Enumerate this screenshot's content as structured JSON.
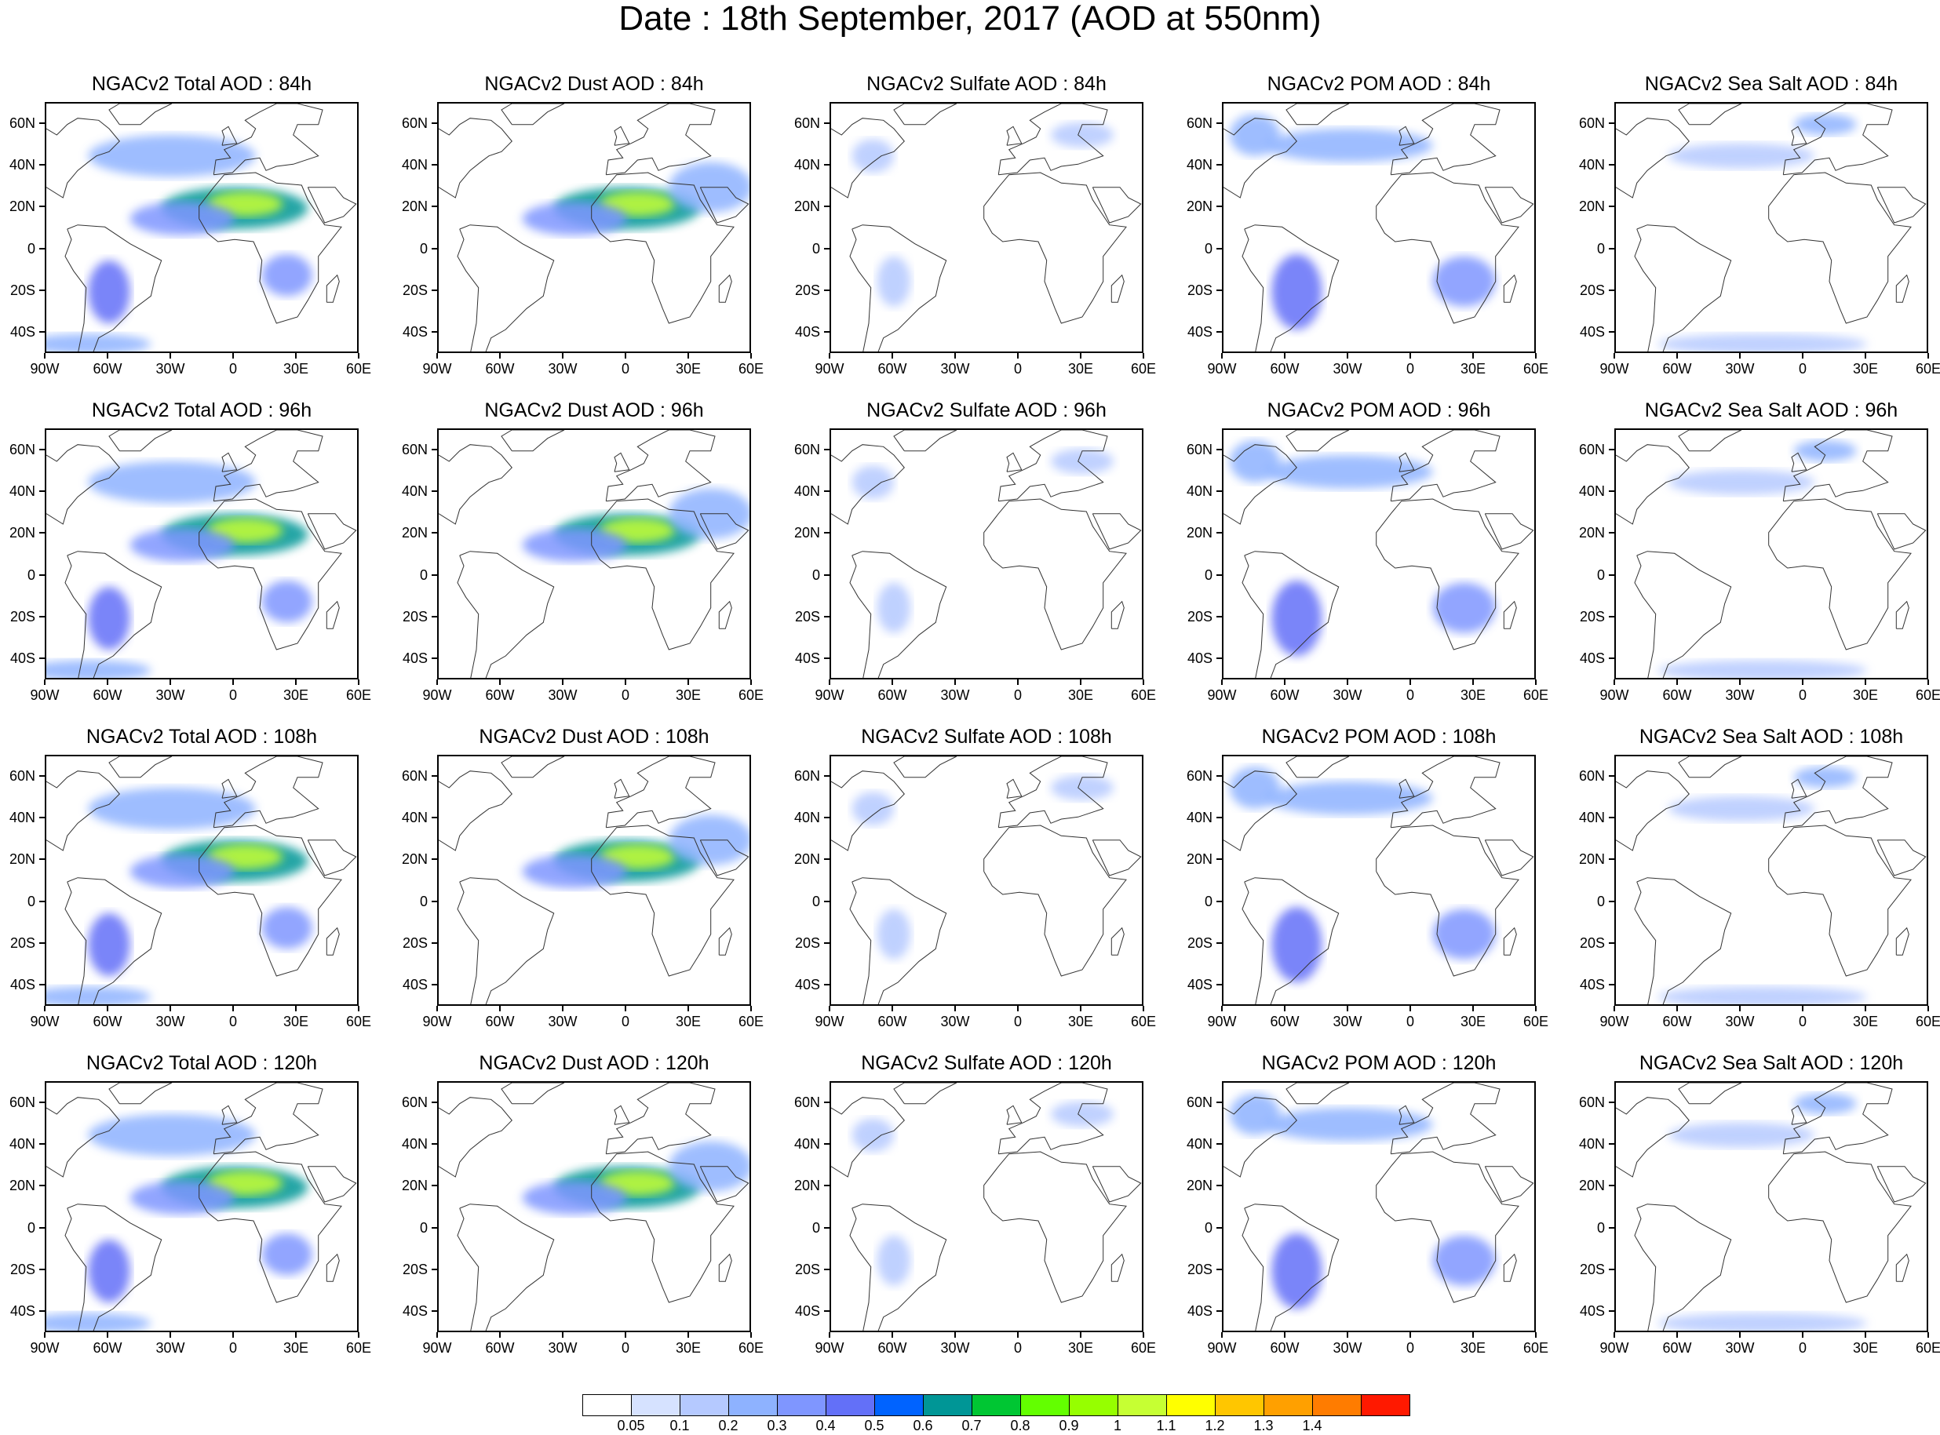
{
  "title": "Date : 18th September, 2017 (AOD at 550nm)",
  "columns": [
    "Total",
    "Dust",
    "Sulfate",
    "POM",
    "Sea Salt"
  ],
  "panels": [
    [
      {
        "title": "NGACv2 Total AOD : 84h",
        "species": "Total"
      },
      {
        "title": "NGACv2 Dust AOD : 84h",
        "species": "Dust"
      },
      {
        "title": "NGACv2 Sulfate AOD : 84h",
        "species": "Sulfate"
      },
      {
        "title": "NGACv2 POM AOD : 84h",
        "species": "POM"
      },
      {
        "title": "NGACv2 Sea Salt AOD : 84h",
        "species": "Sea Salt"
      }
    ],
    [
      {
        "title": "NGACv2 Total AOD : 96h",
        "species": "Total"
      },
      {
        "title": "NGACv2 Dust AOD : 96h",
        "species": "Dust"
      },
      {
        "title": "NGACv2 Sulfate AOD : 96h",
        "species": "Sulfate"
      },
      {
        "title": "NGACv2 POM AOD : 96h",
        "species": "POM"
      },
      {
        "title": "NGACv2 Sea Salt AOD : 96h",
        "species": "Sea Salt"
      }
    ],
    [
      {
        "title": "NGACv2 Total AOD : 108h",
        "species": "Total"
      },
      {
        "title": "NGACv2 Dust AOD : 108h",
        "species": "Dust"
      },
      {
        "title": "NGACv2 Sulfate AOD : 108h",
        "species": "Sulfate"
      },
      {
        "title": "NGACv2 POM AOD : 108h",
        "species": "POM"
      },
      {
        "title": "NGACv2 Sea Salt AOD : 108h",
        "species": "Sea Salt"
      }
    ],
    [
      {
        "title": "NGACv2 Total AOD : 120h",
        "species": "Total"
      },
      {
        "title": "NGACv2 Dust AOD : 120h",
        "species": "Dust"
      },
      {
        "title": "NGACv2 Sulfate AOD : 120h",
        "species": "Sulfate"
      },
      {
        "title": "NGACv2 POM AOD : 120h",
        "species": "POM"
      },
      {
        "title": "NGACv2 Sea Salt  AOD : 120h",
        "species": "Sea Salt"
      }
    ]
  ],
  "map_extent": {
    "lon": [
      -90,
      60
    ],
    "lat": [
      -50,
      70
    ]
  },
  "lon_ticks": [
    {
      "value": -90,
      "label": "90W"
    },
    {
      "value": -60,
      "label": "60W"
    },
    {
      "value": -30,
      "label": "30W"
    },
    {
      "value": 0,
      "label": "0"
    },
    {
      "value": 30,
      "label": "30E"
    },
    {
      "value": 60,
      "label": "60E"
    }
  ],
  "lat_ticks": [
    {
      "value": 60,
      "label": "60N"
    },
    {
      "value": 40,
      "label": "40N"
    },
    {
      "value": 20,
      "label": "20N"
    },
    {
      "value": 0,
      "label": "0"
    },
    {
      "value": -20,
      "label": "20S"
    },
    {
      "value": -40,
      "label": "40S"
    }
  ],
  "colorbar": {
    "labels": [
      "0.05",
      "0.1",
      "0.2",
      "0.3",
      "0.4",
      "0.5",
      "0.6",
      "0.7",
      "0.8",
      "0.9",
      "1",
      "1.1",
      "1.2",
      "1.3",
      "1.4"
    ],
    "colors": [
      "#ffffff",
      "#d6e2ff",
      "#b5c9ff",
      "#8eb2ff",
      "#7f96ff",
      "#6370f8",
      "#0063ff",
      "#009696",
      "#00c633",
      "#63ff00",
      "#96ff00",
      "#c6ff33",
      "#ffff00",
      "#ffc600",
      "#ffa000",
      "#ff7c00",
      "#ff1900"
    ]
  },
  "aerosol_features": {
    "Total": [
      {
        "lon": 0,
        "lat": 20,
        "rx": 35,
        "ry": 10,
        "level": 0.6
      },
      {
        "lon": 5,
        "lat": 22,
        "rx": 18,
        "ry": 6,
        "level": 1.0
      },
      {
        "lon": -25,
        "lat": 15,
        "rx": 25,
        "ry": 8,
        "level": 0.35
      },
      {
        "lon": -60,
        "lat": -20,
        "rx": 10,
        "ry": 15,
        "level": 0.45
      },
      {
        "lon": 25,
        "lat": -12,
        "rx": 12,
        "ry": 10,
        "level": 0.35
      },
      {
        "lon": -30,
        "lat": 45,
        "rx": 40,
        "ry": 10,
        "level": 0.25
      },
      {
        "lon": -70,
        "lat": -45,
        "rx": 30,
        "ry": 5,
        "level": 0.2
      }
    ],
    "Dust": [
      {
        "lon": 0,
        "lat": 20,
        "rx": 35,
        "ry": 10,
        "level": 0.6
      },
      {
        "lon": 5,
        "lat": 22,
        "rx": 18,
        "ry": 6,
        "level": 1.0
      },
      {
        "lon": -25,
        "lat": 15,
        "rx": 25,
        "ry": 8,
        "level": 0.3
      },
      {
        "lon": 40,
        "lat": 30,
        "rx": 20,
        "ry": 12,
        "level": 0.2
      }
    ],
    "Sulfate": [
      {
        "lon": -60,
        "lat": -15,
        "rx": 8,
        "ry": 12,
        "level": 0.1
      },
      {
        "lon": -70,
        "lat": 45,
        "rx": 10,
        "ry": 8,
        "level": 0.1
      },
      {
        "lon": 30,
        "lat": 55,
        "rx": 15,
        "ry": 6,
        "level": 0.1
      }
    ],
    "POM": [
      {
        "lon": -55,
        "lat": -20,
        "rx": 12,
        "ry": 18,
        "level": 0.4
      },
      {
        "lon": 25,
        "lat": -15,
        "rx": 15,
        "ry": 12,
        "level": 0.35
      },
      {
        "lon": -30,
        "lat": 50,
        "rx": 40,
        "ry": 8,
        "level": 0.2
      },
      {
        "lon": -75,
        "lat": 55,
        "rx": 12,
        "ry": 10,
        "level": 0.25
      }
    ],
    "Sea Salt": [
      {
        "lon": -30,
        "lat": 45,
        "rx": 35,
        "ry": 6,
        "level": 0.15
      },
      {
        "lon": -20,
        "lat": -45,
        "rx": 50,
        "ry": 5,
        "level": 0.12
      },
      {
        "lon": 10,
        "lat": 60,
        "rx": 15,
        "ry": 5,
        "level": 0.2
      }
    ]
  }
}
